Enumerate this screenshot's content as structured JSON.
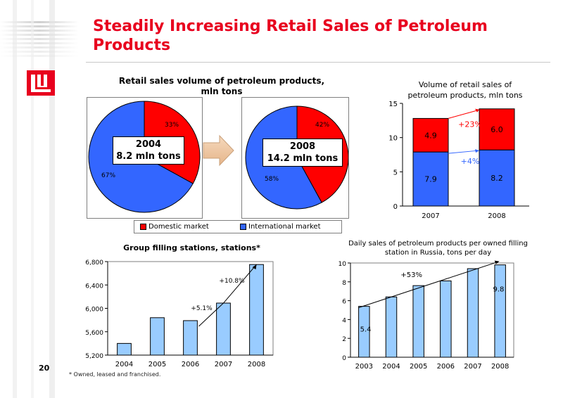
{
  "slide": {
    "title": "Steadily Increasing Retail Sales of Petroleum Products",
    "page_number": "20",
    "footnote": "* Owned, leased and franchised."
  },
  "colors": {
    "domestic": "#ff0000",
    "international": "#3366ff",
    "bar_light": "#99ccff",
    "accent": "#e8001e"
  },
  "legend": {
    "domestic": "Domestic market",
    "international": "International market"
  },
  "chart_data": [
    {
      "type": "pie",
      "title": "Retail sales volume of petroleum products, mln tons",
      "year": "2004",
      "total_label": "8.2 mln tons",
      "slices": [
        {
          "name": "Domestic market",
          "value": 33,
          "label": "33%"
        },
        {
          "name": "International market",
          "value": 67,
          "label": "67%"
        }
      ]
    },
    {
      "type": "pie",
      "year": "2008",
      "total_label": "14.2 mln tons",
      "slices": [
        {
          "name": "Domestic market",
          "value": 42,
          "label": "42%"
        },
        {
          "name": "International market",
          "value": 58,
          "label": "58%"
        }
      ]
    },
    {
      "type": "bar",
      "stacked": true,
      "title": "Volume of retail sales of petroleum products, mln tons",
      "categories": [
        "2007",
        "2008"
      ],
      "series": [
        {
          "name": "International market",
          "values": [
            7.9,
            8.2
          ],
          "labels": [
            "7.9",
            "8.2"
          ]
        },
        {
          "name": "Domestic market",
          "values": [
            4.9,
            6.0
          ],
          "labels": [
            "4.9",
            "6.0"
          ]
        }
      ],
      "yticks": [
        "0",
        "5",
        "10",
        "15"
      ],
      "ylim": [
        0,
        15
      ],
      "annotations": [
        "+23%",
        "+4%"
      ]
    },
    {
      "type": "bar",
      "title": "Group filling stations, stations*",
      "categories": [
        "2004",
        "2005",
        "2006",
        "2007",
        "2008"
      ],
      "values": [
        5400,
        5840,
        5790,
        6090,
        6750
      ],
      "yticks": [
        "5,200",
        "5,600",
        "6,000",
        "6,400",
        "6,800"
      ],
      "ylim": [
        5200,
        6800
      ],
      "annotations": [
        "+5.1%",
        "+10.8%"
      ]
    },
    {
      "type": "bar",
      "title": "Daily sales of petroleum products per owned filling station in Russia, tons per day",
      "categories": [
        "2003",
        "2004",
        "2005",
        "2006",
        "2007",
        "2008"
      ],
      "values": [
        5.4,
        6.4,
        7.6,
        8.1,
        9.4,
        9.8
      ],
      "data_labels": [
        "5.4",
        "",
        "",
        "",
        "",
        "9.8"
      ],
      "yticks": [
        "0",
        "2",
        "4",
        "6",
        "8",
        "10"
      ],
      "ylim": [
        0,
        10
      ],
      "annotations": [
        "+53%"
      ]
    }
  ]
}
